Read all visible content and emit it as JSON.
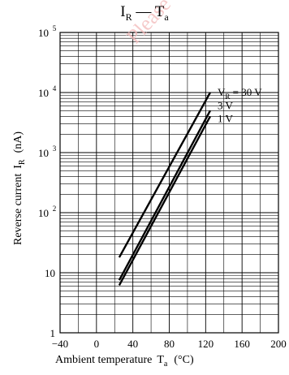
{
  "chart_data": {
    "type": "line",
    "title": {
      "main": "I",
      "sub1": "R",
      "dash": " — T",
      "sub2": "a"
    },
    "xlabel": {
      "text": "Ambient temperature",
      "sym": "T",
      "sub": "a",
      "unit": "(°C)"
    },
    "ylabel": {
      "text": "Reverse current",
      "sym": "I",
      "sub": "R",
      "unit": "(nA)"
    },
    "x_scale": "linear",
    "y_scale": "log",
    "xlim": [
      -40,
      200
    ],
    "ylim": [
      1,
      100000
    ],
    "x_ticks": [
      "−40",
      "0",
      "40",
      "80",
      "120",
      "160",
      "200"
    ],
    "x_tick_values": [
      -40,
      0,
      40,
      80,
      120,
      160,
      200
    ],
    "y_ticks": [
      {
        "value": 1,
        "base": "1",
        "exp": ""
      },
      {
        "value": 10,
        "base": "10",
        "exp": ""
      },
      {
        "value": 100,
        "base": "10",
        "exp": "2"
      },
      {
        "value": 1000,
        "base": "10",
        "exp": "3"
      },
      {
        "value": 10000,
        "base": "10",
        "exp": "4"
      },
      {
        "value": 100000,
        "base": "10",
        "exp": "5"
      }
    ],
    "grid": true,
    "series": [
      {
        "name": "V_R = 30 V",
        "label_main": "V",
        "label_sub": "R",
        "label_rest": " = 30 V",
        "x": [
          25,
          125
        ],
        "y": [
          18,
          10000
        ]
      },
      {
        "name": "3 V",
        "label_main": "3 V",
        "label_sub": "",
        "label_rest": "",
        "x": [
          25,
          125
        ],
        "y": [
          7.5,
          5000
        ]
      },
      {
        "name": "1 V",
        "label_main": "1 V",
        "label_sub": "",
        "label_rest": "",
        "x": [
          25,
          125
        ],
        "y": [
          6.2,
          4000
        ]
      }
    ]
  },
  "watermark": "Please visit for www"
}
